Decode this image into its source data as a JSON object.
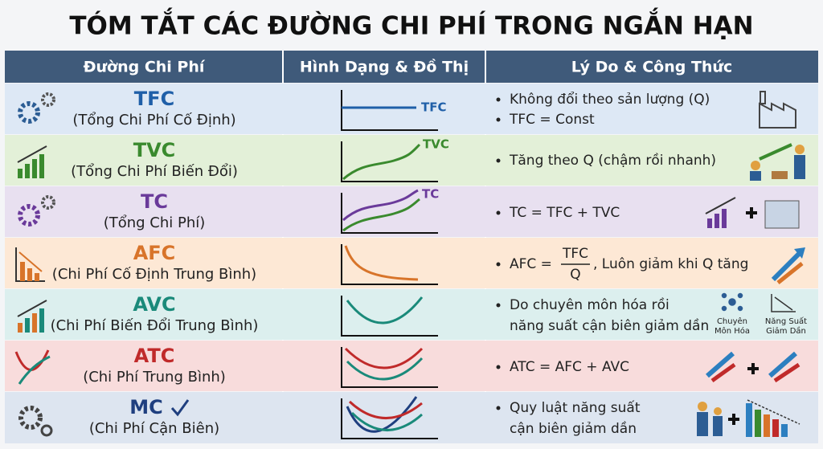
{
  "title": "TÓM TẮT CÁC ĐƯỜNG CHI PHÍ TRONG NGẮN HẠN",
  "table": {
    "headers": [
      "Đường Chi Phí",
      "Hình Dạng & Đồ Thị",
      "Lý Do & Công Thức"
    ],
    "rows": [
      {
        "name": "TFC",
        "full": "(Tổng Chi Phí Cố Định)",
        "graph_label": "TFC",
        "reasons": [
          "Không đổi theo sản lượng (Q)",
          "TFC = Const"
        ]
      },
      {
        "name": "TVC",
        "full": "(Tổng Chi Phí Biến Đổi)",
        "graph_label": "TVC",
        "reasons": [
          "Tăng theo Q (chậm rồi nhanh)"
        ]
      },
      {
        "name": "TC",
        "full": "(Tổng Chi Phí)",
        "graph_label": "TC",
        "reasons": [
          "TC = TFC + TVC"
        ]
      },
      {
        "name": "AFC",
        "full": "(Chi Phí Cố Định Trung Bình)",
        "formula": {
          "left": "AFC =",
          "numerator": "TFC",
          "denominator": "Q",
          "right": ", Luôn giảm khi Q tăng"
        }
      },
      {
        "name": "AVC",
        "full": "(Chi Phí Biến Đổi Trung Bình)",
        "reason_lines": [
          "Do chuyên môn hóa rồi",
          "năng suất cận biên giảm dần"
        ],
        "icon_labels": [
          [
            "Chuyên",
            "Môn Hóa"
          ],
          [
            "Năng Suất",
            "Giảm Dần"
          ]
        ]
      },
      {
        "name": "ATC",
        "full": "(Chi Phí Trung Bình)",
        "reasons": [
          "ATC = AFC + AVC"
        ]
      },
      {
        "name": "MC",
        "full": "(Chi Phí Cận Biên)",
        "reason_lines": [
          "Quy luật năng suất",
          "cận biên giảm dần"
        ]
      }
    ]
  }
}
